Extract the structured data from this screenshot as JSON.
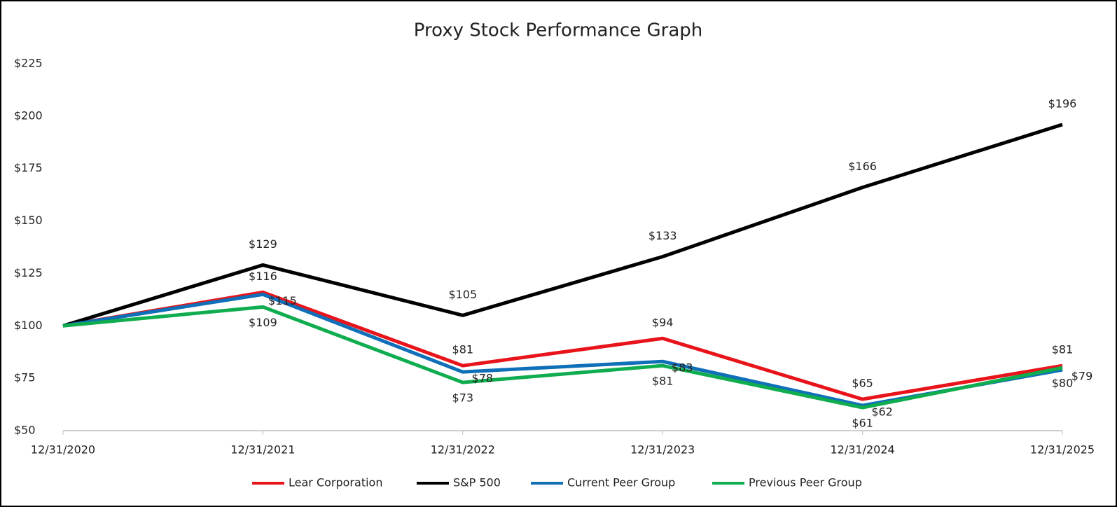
{
  "chart_data": {
    "type": "line",
    "title": "Proxy Stock Performance Graph",
    "categories": [
      "12/31/2020",
      "12/31/2021",
      "12/31/2022",
      "12/31/2023",
      "12/31/2024",
      "12/31/2025"
    ],
    "series": [
      {
        "name": "Lear Corporation",
        "color": "#e8141b",
        "values": [
          100,
          116,
          81,
          94,
          65,
          81
        ],
        "value_labels": [
          null,
          "$116",
          "$81",
          "$94",
          "$65",
          "$81"
        ]
      },
      {
        "name": "S&P 500",
        "color": "#000000",
        "values": [
          100,
          129,
          105,
          133,
          166,
          196
        ],
        "value_labels": [
          null,
          "$129",
          "$105",
          "$133",
          "$166",
          "$196"
        ]
      },
      {
        "name": "Current Peer Group",
        "color": "#0f6fb8",
        "values": [
          100,
          115,
          78,
          83,
          62,
          79
        ],
        "value_labels": [
          null,
          "$115",
          "$78",
          "$83",
          "$62",
          "$79"
        ]
      },
      {
        "name": "Previous Peer Group",
        "color": "#0fad4f",
        "values": [
          100,
          109,
          73,
          81,
          61,
          80
        ],
        "value_labels": [
          null,
          "$109",
          "$73",
          "$81",
          "$61",
          "$80"
        ]
      }
    ],
    "ylim": [
      50,
      225
    ],
    "yticks": [
      {
        "value": 50,
        "label": "$50"
      },
      {
        "value": 75,
        "label": "$75"
      },
      {
        "value": 100,
        "label": "$100"
      },
      {
        "value": 125,
        "label": "$125"
      },
      {
        "value": 150,
        "label": "$150"
      },
      {
        "value": 175,
        "label": "$175"
      },
      {
        "value": 200,
        "label": "$200"
      },
      {
        "value": 225,
        "label": "$225"
      }
    ],
    "grid": false,
    "legend": "bottom"
  }
}
